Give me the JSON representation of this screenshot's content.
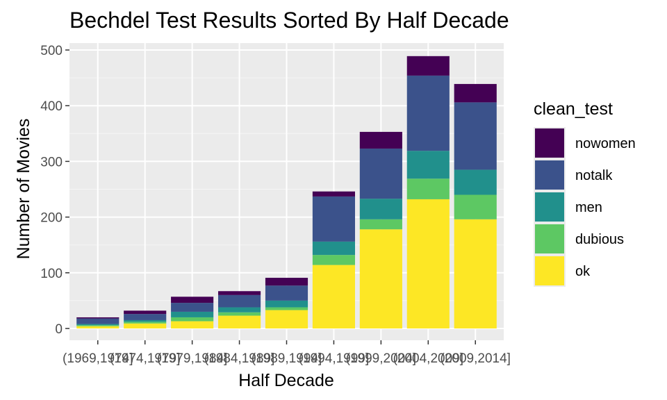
{
  "chart_data": {
    "type": "bar",
    "stacked": true,
    "title": "Bechdel Test Results Sorted By Half Decade",
    "xlabel": "Half Decade",
    "ylabel": "Number of Movies",
    "ylim": [
      0,
      520
    ],
    "yticks": [
      0,
      100,
      200,
      300,
      400,
      500
    ],
    "grid": true,
    "legend": {
      "title": "clean_test",
      "position": "right"
    },
    "categories": [
      "(1969,1974]",
      "(1974,1979]",
      "(1979,1984]",
      "(1984,1989]",
      "(1989,1994]",
      "(1994,1999]",
      "(1999,2004]",
      "(2004,2009]",
      "(2009,2014]"
    ],
    "series": [
      {
        "name": "ok",
        "color": "#FDE725",
        "values": [
          4,
          9,
          13,
          23,
          33,
          114,
          178,
          232,
          196
        ]
      },
      {
        "name": "dubious",
        "color": "#5DC863",
        "values": [
          2,
          3,
          7,
          6,
          5,
          18,
          18,
          37,
          44
        ]
      },
      {
        "name": "men",
        "color": "#21908C",
        "values": [
          2,
          3,
          10,
          9,
          12,
          24,
          37,
          50,
          45
        ]
      },
      {
        "name": "notalk",
        "color": "#3B528B",
        "values": [
          10,
          11,
          16,
          22,
          27,
          81,
          90,
          135,
          121
        ]
      },
      {
        "name": "nowomen",
        "color": "#440154",
        "values": [
          2,
          6,
          11,
          7,
          14,
          9,
          30,
          35,
          33
        ]
      }
    ],
    "legend_order": [
      "nowomen",
      "notalk",
      "men",
      "dubious",
      "ok"
    ]
  }
}
